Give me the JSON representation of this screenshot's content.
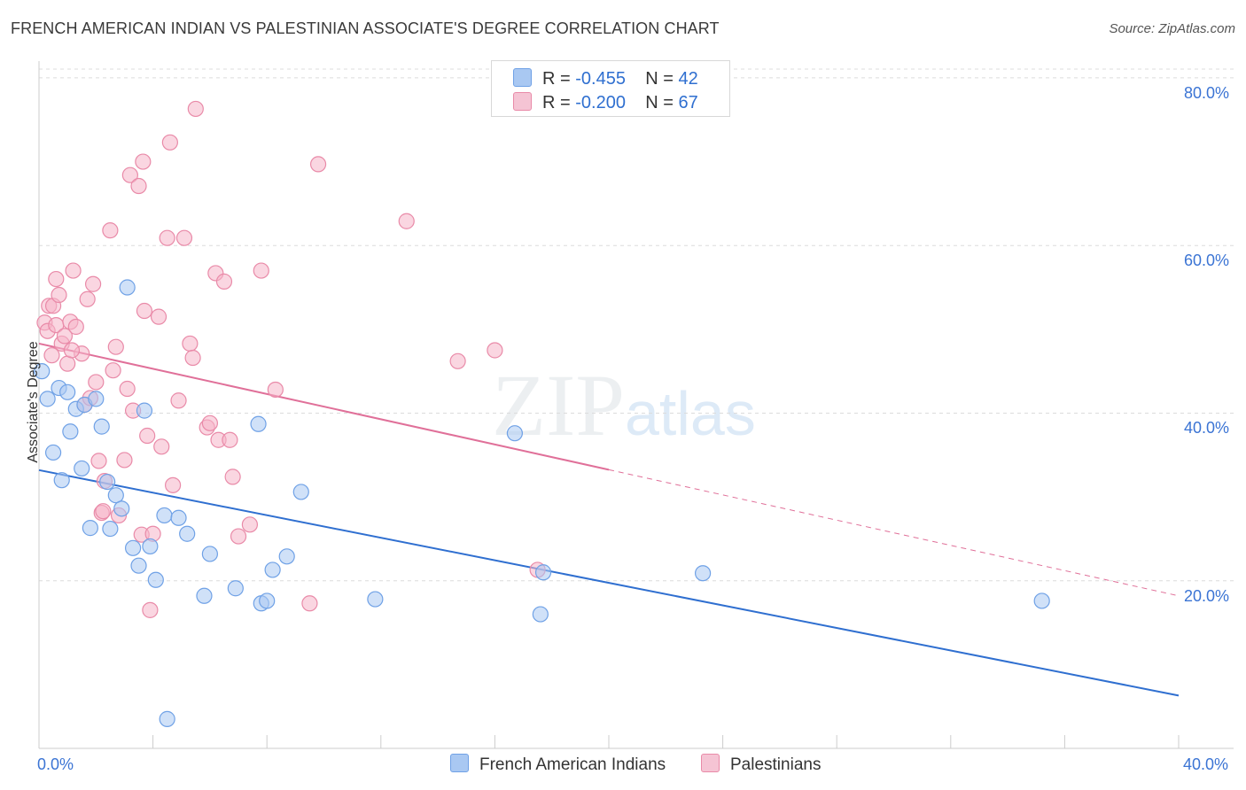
{
  "title": "FRENCH AMERICAN INDIAN VS PALESTINIAN ASSOCIATE'S DEGREE CORRELATION CHART",
  "source": "Source: ZipAtlas.com",
  "watermark": {
    "zip": "ZIP",
    "atlas": "atlas"
  },
  "legend_top": [
    {
      "r_label": "R =",
      "r_value": "-0.455",
      "n_label": "N =",
      "n_value": "42",
      "color": "#a9c8f2"
    },
    {
      "r_label": "R =",
      "r_value": "-0.200",
      "n_label": "N =",
      "n_value": "67",
      "color": "#f5b5c9"
    }
  ],
  "legend_bottom": [
    {
      "label": "French American Indians",
      "color": "#a9c8f2"
    },
    {
      "label": "Palestinians",
      "color": "#f5b5c9"
    }
  ],
  "chart_data": {
    "type": "scatter",
    "ylabel": "Associate's Degree",
    "xlim": [
      0,
      40
    ],
    "ylim": [
      0,
      82
    ],
    "x_tick_labels": [
      "0.0%",
      "40.0%"
    ],
    "y_tick_labels": [
      "20.0%",
      "40.0%",
      "60.0%",
      "80.0%"
    ],
    "y_ticks": [
      20,
      40,
      60,
      80
    ],
    "grid": true,
    "series": [
      {
        "name": "French American Indians",
        "color": "#6fa1e6",
        "fill": "#a9c8f2",
        "trend_color": "#2f6fd0",
        "trend": {
          "x0": 0,
          "y0": 33.2,
          "x1": 40,
          "y1": 6.3,
          "solid_to": 40
        },
        "points": [
          [
            0.1,
            45
          ],
          [
            0.3,
            41.7
          ],
          [
            0.5,
            35.3
          ],
          [
            0.7,
            43
          ],
          [
            0.8,
            32
          ],
          [
            1.0,
            42.5
          ],
          [
            1.1,
            37.8
          ],
          [
            1.3,
            40.5
          ],
          [
            1.5,
            33.4
          ],
          [
            1.6,
            41
          ],
          [
            1.8,
            26.3
          ],
          [
            2.0,
            41.7
          ],
          [
            2.2,
            38.4
          ],
          [
            2.4,
            31.8
          ],
          [
            2.5,
            26.2
          ],
          [
            2.7,
            30.2
          ],
          [
            2.9,
            28.6
          ],
          [
            3.1,
            55
          ],
          [
            3.3,
            23.9
          ],
          [
            3.5,
            21.8
          ],
          [
            3.7,
            40.3
          ],
          [
            3.9,
            24.1
          ],
          [
            4.1,
            20.1
          ],
          [
            4.4,
            27.8
          ],
          [
            4.5,
            3.5
          ],
          [
            4.9,
            27.5
          ],
          [
            5.2,
            25.6
          ],
          [
            5.8,
            18.2
          ],
          [
            6.0,
            23.2
          ],
          [
            6.9,
            19.1
          ],
          [
            7.7,
            38.7
          ],
          [
            7.8,
            17.3
          ],
          [
            8.0,
            17.6
          ],
          [
            8.2,
            21.3
          ],
          [
            8.7,
            22.9
          ],
          [
            9.2,
            30.6
          ],
          [
            11.8,
            17.8
          ],
          [
            16.7,
            37.6
          ],
          [
            17.6,
            16
          ],
          [
            17.7,
            21
          ],
          [
            23.3,
            20.9
          ],
          [
            35.2,
            17.6
          ]
        ]
      },
      {
        "name": "Palestinians",
        "color": "#e98aa8",
        "fill": "#f5b5c9",
        "trend_color": "#e07099",
        "trend": {
          "x0": 0,
          "y0": 48.3,
          "x1": 40,
          "y1": 18.2,
          "solid_to": 20
        },
        "points": [
          [
            0.2,
            50.8
          ],
          [
            0.3,
            49.8
          ],
          [
            0.35,
            52.8
          ],
          [
            0.45,
            46.9
          ],
          [
            0.5,
            52.8
          ],
          [
            0.6,
            50.5
          ],
          [
            0.7,
            54.1
          ],
          [
            0.8,
            48.3
          ],
          [
            0.9,
            49.2
          ],
          [
            1.0,
            45.9
          ],
          [
            1.1,
            50.9
          ],
          [
            1.2,
            57
          ],
          [
            1.3,
            50.3
          ],
          [
            1.5,
            47.1
          ],
          [
            1.6,
            41
          ],
          [
            1.7,
            53.6
          ],
          [
            1.8,
            41.8
          ],
          [
            1.9,
            55.4
          ],
          [
            2.0,
            43.7
          ],
          [
            2.1,
            34.3
          ],
          [
            2.2,
            28.1
          ],
          [
            2.3,
            31.9
          ],
          [
            2.5,
            61.8
          ],
          [
            2.6,
            45.1
          ],
          [
            2.7,
            47.9
          ],
          [
            2.8,
            27.8
          ],
          [
            3.0,
            34.4
          ],
          [
            3.1,
            42.9
          ],
          [
            3.2,
            68.4
          ],
          [
            3.3,
            40.3
          ],
          [
            3.5,
            67.1
          ],
          [
            3.6,
            25.5
          ],
          [
            3.7,
            52.2
          ],
          [
            3.8,
            37.3
          ],
          [
            3.9,
            16.5
          ],
          [
            4.0,
            25.6
          ],
          [
            4.2,
            51.5
          ],
          [
            4.3,
            36
          ],
          [
            4.5,
            60.9
          ],
          [
            4.6,
            72.3
          ],
          [
            4.7,
            31.4
          ],
          [
            4.9,
            41.5
          ],
          [
            5.1,
            60.9
          ],
          [
            5.3,
            48.3
          ],
          [
            5.4,
            46.6
          ],
          [
            5.5,
            76.3
          ],
          [
            5.9,
            38.3
          ],
          [
            6.0,
            38.8
          ],
          [
            6.2,
            56.7
          ],
          [
            6.3,
            36.8
          ],
          [
            6.5,
            55.7
          ],
          [
            6.7,
            36.8
          ],
          [
            6.8,
            32.4
          ],
          [
            7.0,
            25.3
          ],
          [
            7.4,
            26.7
          ],
          [
            7.8,
            57
          ],
          [
            8.3,
            42.8
          ],
          [
            9.5,
            17.3
          ],
          [
            9.8,
            69.7
          ],
          [
            12.9,
            62.9
          ],
          [
            14.7,
            46.2
          ],
          [
            16,
            47.5
          ],
          [
            17.5,
            21.3
          ],
          [
            3.65,
            70
          ],
          [
            2.25,
            28.3
          ],
          [
            1.15,
            47.5
          ],
          [
            0.6,
            56
          ]
        ]
      }
    ]
  }
}
